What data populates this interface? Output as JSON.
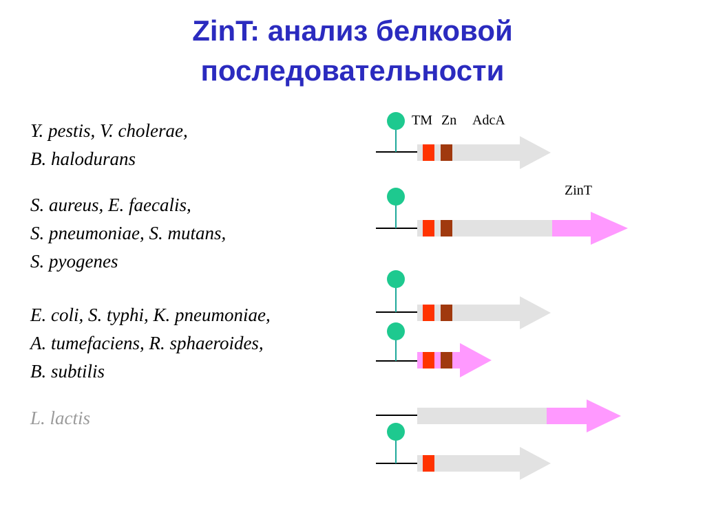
{
  "title_line1": "ZinT: анализ белковой",
  "title_line2": "последовательности",
  "groups": [
    {
      "lines": [
        "Y. pestis, V. cholerae,",
        "B. halodurans"
      ]
    },
    {
      "lines": [
        "S. aureus, E. faecalis,",
        "S. pneumoniae, S. mutans,",
        "S. pyogenes"
      ]
    },
    {
      "lines": [
        "E. coli, S. typhi, K. pneumoniae,",
        "A. tumefaciens, R. sphaeroides,",
        "B. subtilis"
      ]
    },
    {
      "lines": [
        "L. lactis"
      ]
    }
  ],
  "labels": {
    "tm": "TM",
    "zn": "Zn",
    "adca": "AdcA",
    "zint": "ZinT"
  },
  "colors": {
    "title": "#2b2bbf",
    "lipobox": "#1ec98f",
    "tm_domain": "#ff3300",
    "zn_domain": "#a0390e",
    "adca_gene": "#e2e2e2",
    "zint_gene": "#ff99ff"
  }
}
